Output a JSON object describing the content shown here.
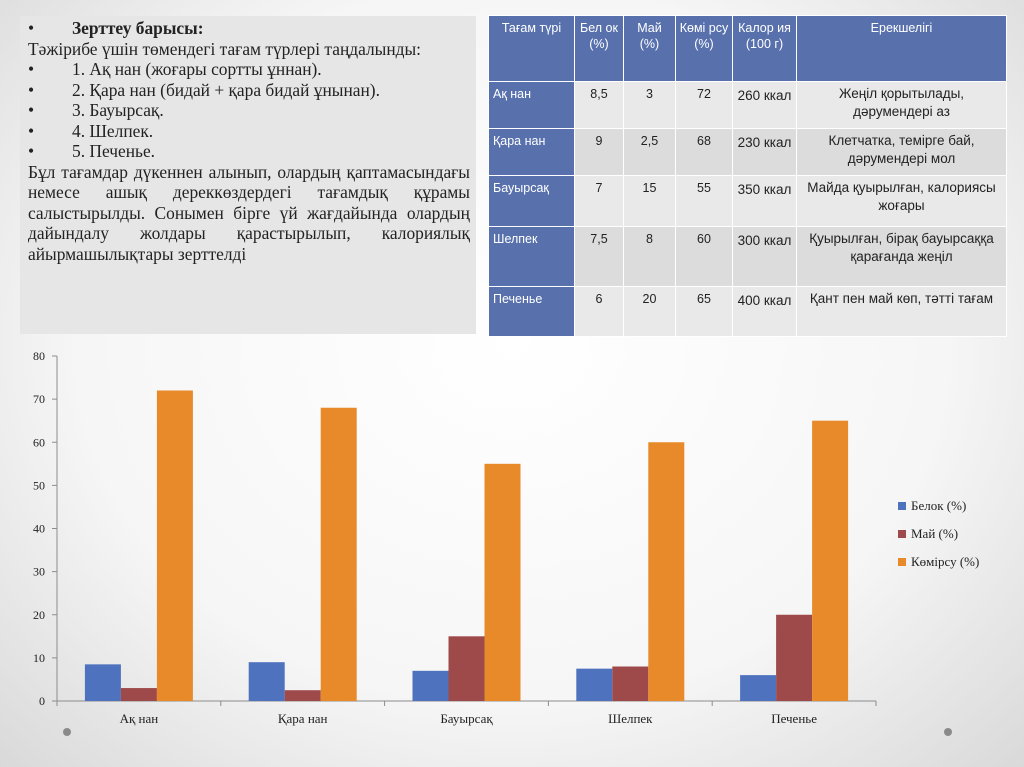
{
  "intro": {
    "heading": "Зерттеу барысы:",
    "lead": "Тәжірибе үшін төмендегі тағам түрлері таңдалынды:",
    "bullet_symbol": "•",
    "items": [
      "1. Ақ нан (жоғары сортты ұннан).",
      "2. Қара нан (бидай + қара бидай ұнынан).",
      "3. Бауырсақ.",
      "4. Шелпек.",
      "5. Печенье."
    ],
    "paragraph": "Бұл тағамдар дүкеннен алынып, олардың қаптамасындағы немесе ашық дереккөздердегі тағамдық құрамы салыстырылды. Сонымен бірге үй жағдайында олардың дайындалу жолдары қарастырылып, калориялық айырмашылықтары зерттелді"
  },
  "table": {
    "headers": [
      "Тағам түрі",
      "Бел ок (%)",
      "Май (%)",
      "Көмі рсу (%)",
      "Калор ия (100 г)",
      "Ерекшелігі"
    ],
    "rows": [
      {
        "name": "Ақ нан",
        "protein": "8,5",
        "fat": "3",
        "carb": "72",
        "cal": "260 ккал",
        "feature": "Жеңіл қорытылады, дәрумендері аз"
      },
      {
        "name": "Қара нан",
        "protein": "9",
        "fat": "2,5",
        "carb": "68",
        "cal": "230 ккал",
        "feature": "Клетчатка, темірге бай, дәрумендері мол"
      },
      {
        "name": "Бауырсақ",
        "protein": "7",
        "fat": "15",
        "carb": "55",
        "cal": "350 ккал",
        "feature": "Майда қуырылған, калориясы жоғары"
      },
      {
        "name": "Шелпек",
        "protein": "7,5",
        "fat": "8",
        "carb": "60",
        "cal": "300 ккал",
        "feature": "Қуырылған, бірақ бауырсаққа қарағанда жеңіл"
      },
      {
        "name": "Печенье",
        "protein": "6",
        "fat": "20",
        "carb": "65",
        "cal": "400 ккал",
        "feature": "Қант пен май көп, тәтті тағам"
      }
    ]
  },
  "chart_data": {
    "type": "bar",
    "categories": [
      "Ақ нан",
      "Қара нан",
      "Бауырсақ",
      "Шелпек",
      "Печенье"
    ],
    "series": [
      {
        "name": "Белок (%)",
        "values": [
          8.5,
          9,
          7,
          7.5,
          6
        ],
        "color": "#4f72be"
      },
      {
        "name": "Май (%)",
        "values": [
          3,
          2.5,
          15,
          8,
          20
        ],
        "color": "#9e4a4a"
      },
      {
        "name": "Көмірсу (%)",
        "values": [
          72,
          68,
          55,
          60,
          65
        ],
        "color": "#e8892a"
      }
    ],
    "ylim": [
      0,
      80
    ],
    "yticks": [
      0,
      10,
      20,
      30,
      40,
      50,
      60,
      70,
      80
    ],
    "grid": false,
    "legend": "right"
  }
}
